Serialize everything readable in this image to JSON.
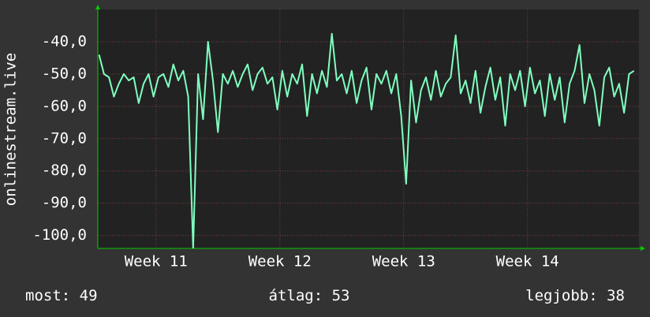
{
  "chart_data": {
    "type": "line",
    "y_label": "onlinestream.live",
    "xlim": [
      10.53,
      14.9
    ],
    "xticks": [
      {
        "value": 11,
        "label": "Week 11"
      },
      {
        "value": 12,
        "label": "Week 12"
      },
      {
        "value": 13,
        "label": "Week 13"
      },
      {
        "value": 14,
        "label": "Week 14"
      }
    ],
    "ylim": [
      -104,
      -30
    ],
    "yticks": [
      {
        "value": -40,
        "label": "-40,0"
      },
      {
        "value": -50,
        "label": "-50,0"
      },
      {
        "value": -60,
        "label": "-60,0"
      },
      {
        "value": -70,
        "label": "-70,0"
      },
      {
        "value": -80,
        "label": "-80,0"
      },
      {
        "value": -90,
        "label": "-90,0"
      },
      {
        "value": -100,
        "label": "-100,0"
      }
    ],
    "grid": true,
    "x": [
      10.54,
      10.58,
      10.62,
      10.66,
      10.7,
      10.74,
      10.78,
      10.82,
      10.86,
      10.9,
      10.94,
      10.98,
      11.02,
      11.06,
      11.1,
      11.14,
      11.18,
      11.22,
      11.26,
      11.3,
      11.34,
      11.38,
      11.42,
      11.46,
      11.5,
      11.54,
      11.58,
      11.62,
      11.66,
      11.7,
      11.74,
      11.78,
      11.82,
      11.86,
      11.9,
      11.94,
      11.98,
      12.02,
      12.06,
      12.1,
      12.14,
      12.18,
      12.22,
      12.26,
      12.3,
      12.34,
      12.38,
      12.42,
      12.46,
      12.5,
      12.54,
      12.58,
      12.62,
      12.66,
      12.7,
      12.74,
      12.78,
      12.82,
      12.86,
      12.9,
      12.94,
      12.98,
      13.02,
      13.06,
      13.1,
      13.14,
      13.18,
      13.22,
      13.26,
      13.3,
      13.34,
      13.38,
      13.42,
      13.46,
      13.5,
      13.54,
      13.58,
      13.62,
      13.66,
      13.7,
      13.74,
      13.78,
      13.82,
      13.86,
      13.9,
      13.94,
      13.98,
      14.02,
      14.06,
      14.1,
      14.14,
      14.18,
      14.22,
      14.26,
      14.3,
      14.34,
      14.38,
      14.42,
      14.46,
      14.5,
      14.54,
      14.58,
      14.62,
      14.66,
      14.7,
      14.74,
      14.78,
      14.82,
      14.86
    ],
    "series": [
      {
        "color": "#80ffc0",
        "values": [
          -44,
          -50,
          -51,
          -57,
          -53,
          -50,
          -52,
          -51,
          -59,
          -53,
          -50,
          -57,
          -51,
          -50,
          -54,
          -47,
          -52,
          -49,
          -57,
          -104,
          -50,
          -64,
          -40,
          -52,
          -68,
          -50,
          -53,
          -49,
          -54,
          -50,
          -47,
          -55,
          -50,
          -48,
          -53,
          -51,
          -61,
          -49,
          -57,
          -50,
          -53,
          -47,
          -63,
          -50,
          -56,
          -49,
          -54,
          -37.5,
          -52,
          -50,
          -56,
          -49,
          -59,
          -52,
          -48,
          -61,
          -50,
          -53,
          -49,
          -56,
          -50,
          -63,
          -84,
          -52,
          -65,
          -55,
          -51,
          -58,
          -49,
          -57,
          -53,
          -51,
          -38,
          -56,
          -52,
          -59,
          -49,
          -62,
          -54,
          -48,
          -58,
          -51,
          -66,
          -50,
          -55,
          -49,
          -60,
          -48,
          -56,
          -52,
          -63,
          -50,
          -58,
          -51,
          -65,
          -53,
          -49,
          -41,
          -59,
          -50,
          -55,
          -66,
          -51,
          -48,
          -57,
          -53,
          -62,
          -50,
          -49
        ]
      }
    ],
    "stats": [
      {
        "label": "most:",
        "value": 49
      },
      {
        "label": "átlag:",
        "value": 53
      },
      {
        "label": "legjobb:",
        "value": 38
      }
    ]
  }
}
